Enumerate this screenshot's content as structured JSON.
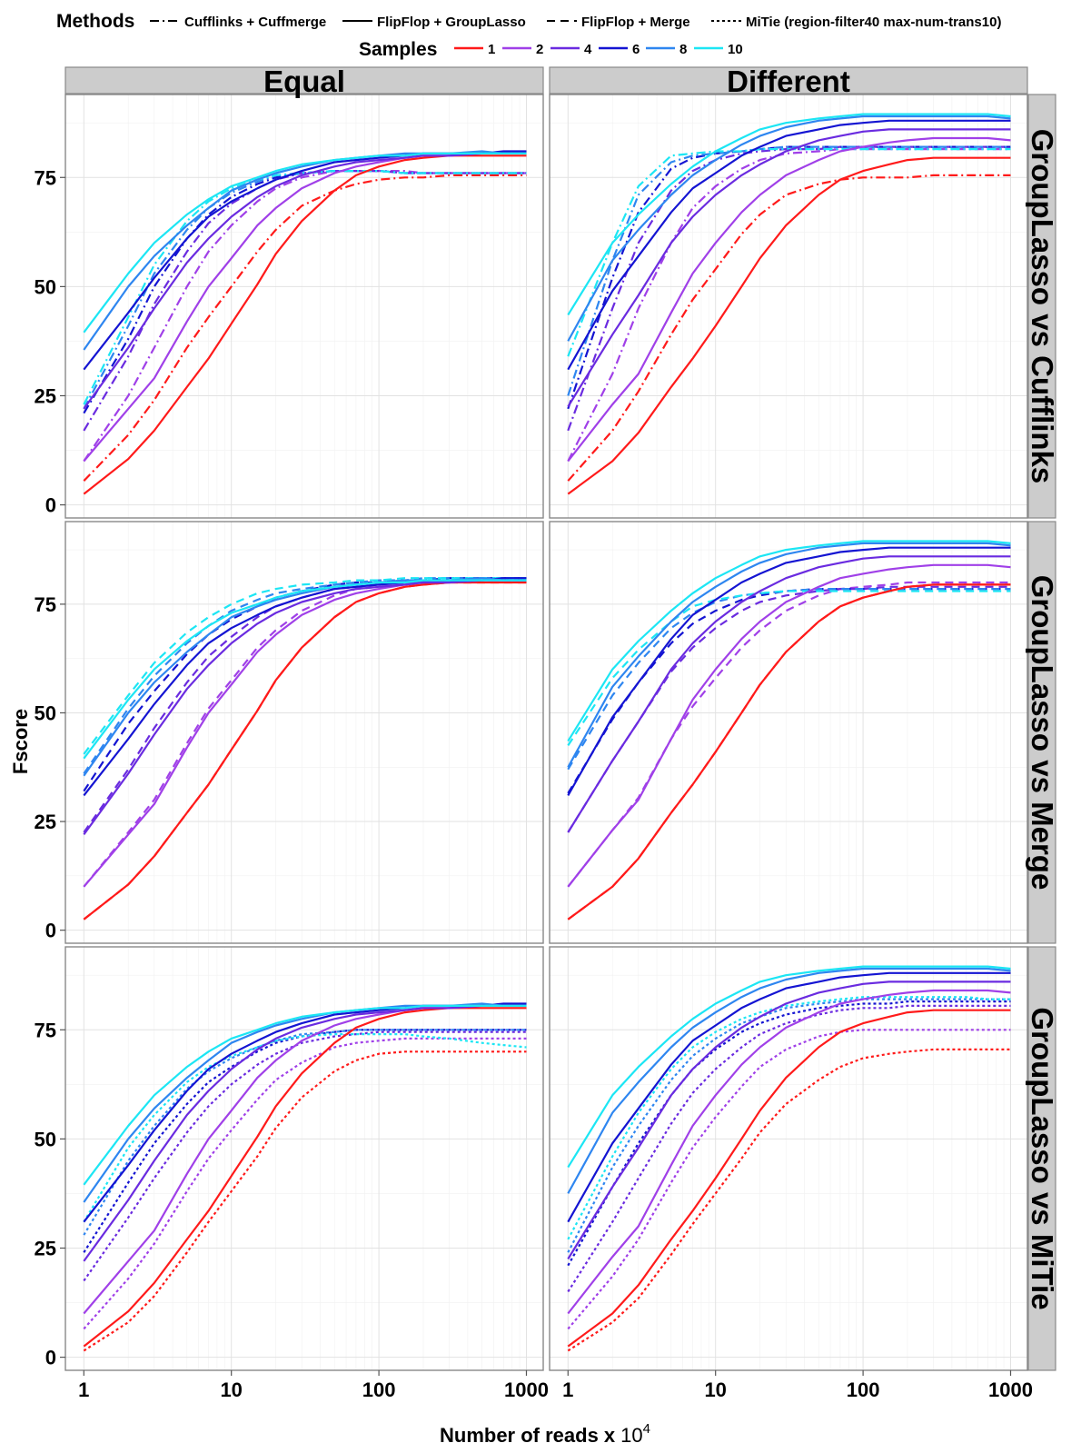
{
  "chart_data": {
    "type": "line",
    "xlabel": "Number of reads x",
    "xlabel_sup_base": "10",
    "xlabel_sup_exp": "4",
    "ylabel": "Fscore",
    "x_scale": "log10",
    "xlim": [
      0.75,
      1300
    ],
    "ylim": [
      -3,
      94
    ],
    "x_ticks": [
      1,
      10,
      100,
      1000
    ],
    "x_tick_labels": [
      "1",
      "10",
      "100",
      "1000"
    ],
    "y_ticks": [
      0,
      25,
      50,
      75
    ],
    "y_tick_labels": [
      "0",
      "25",
      "50",
      "75"
    ],
    "grid": true,
    "legend_placement": "top",
    "legend": {
      "methods_title": "Methods",
      "methods": [
        {
          "key": "cuff",
          "label": "Cufflinks + Cuffmerge",
          "dash": "dashdot"
        },
        {
          "key": "gl",
          "label": "FlipFlop + GroupLasso",
          "dash": "solid"
        },
        {
          "key": "merge",
          "label": "FlipFlop + Merge",
          "dash": "dashed"
        },
        {
          "key": "mitie",
          "label": "MiTie (region-filter40 max-num-trans10)",
          "dash": "dotted"
        }
      ],
      "samples_title": "Samples",
      "samples": [
        {
          "label": "1",
          "color": "#FF1A1A"
        },
        {
          "label": "2",
          "color": "#A040E8"
        },
        {
          "label": "4",
          "color": "#6A2BE0"
        },
        {
          "label": "6",
          "color": "#1414D2"
        },
        {
          "label": "8",
          "color": "#2E86F0"
        },
        {
          "label": "10",
          "color": "#1CE6F4"
        }
      ]
    },
    "col_strips": [
      "Equal",
      "Different"
    ],
    "row_strips": [
      "GroupLasso vs Cufflinks",
      "GroupLasso vs Merge",
      "GroupLasso vs MiTie"
    ],
    "x": [
      1,
      2,
      3,
      5,
      7,
      10,
      15,
      20,
      30,
      50,
      70,
      100,
      150,
      200,
      300,
      500,
      700,
      1000
    ],
    "grouplasso": {
      "equal": {
        "1": [
          2.5,
          10.5,
          17,
          27,
          33.5,
          41.5,
          50.5,
          57.5,
          65,
          72,
          75.5,
          77.5,
          79,
          79.5,
          80,
          80,
          80,
          80
        ],
        "2": [
          10,
          22,
          29,
          42,
          50,
          56.5,
          64,
          68,
          72.5,
          76,
          77.5,
          78.5,
          79.5,
          80,
          80,
          80.5,
          80.5,
          80.5
        ],
        "4": [
          22,
          36,
          45,
          55.5,
          61,
          66,
          70.5,
          73,
          75.5,
          77.5,
          78.5,
          79,
          79.5,
          80,
          80,
          80.5,
          80.5,
          80.5
        ],
        "6": [
          31,
          44,
          52,
          61,
          66,
          69.5,
          72.5,
          74.5,
          76.5,
          78.5,
          79,
          79.5,
          80,
          80.5,
          80.5,
          80.5,
          81,
          81
        ],
        "8": [
          35.5,
          50,
          57,
          64,
          68,
          72,
          74.5,
          76,
          77.5,
          79,
          79.5,
          80,
          80.5,
          80.5,
          80.5,
          81,
          80.5,
          80.5
        ],
        "10": [
          39.5,
          53,
          60,
          66.5,
          70,
          73,
          75,
          76.5,
          78,
          79,
          79.5,
          80,
          80,
          80.5,
          80.5,
          80.5,
          80.5,
          80.5
        ]
      },
      "different": {
        "1": [
          2.5,
          10,
          16.5,
          27,
          33.5,
          41,
          50,
          56.5,
          64,
          71,
          74.5,
          76.5,
          78,
          79,
          79.5,
          79.5,
          79.5,
          79.5
        ],
        "2": [
          10,
          23,
          30,
          44,
          53,
          60,
          67,
          71,
          75.5,
          79,
          81,
          82,
          83,
          83.5,
          84,
          84,
          84,
          83.5
        ],
        "4": [
          22.5,
          39,
          48,
          60,
          66,
          71,
          75.5,
          78,
          81,
          83.5,
          84.5,
          85.5,
          86,
          86,
          86,
          86,
          86,
          86
        ],
        "6": [
          31,
          49,
          57,
          67,
          72.5,
          76,
          80,
          82,
          84.5,
          86,
          87,
          87.5,
          88,
          88,
          88,
          88,
          88,
          88
        ],
        "8": [
          37.5,
          56,
          63,
          71,
          75.5,
          79,
          82.5,
          84.5,
          86.5,
          88,
          88.5,
          89,
          89,
          89,
          89,
          89,
          89,
          88.5
        ],
        "10": [
          43.5,
          60,
          66.5,
          73.5,
          77.5,
          81,
          84,
          86,
          87.5,
          88.5,
          89,
          89.5,
          89.5,
          89.5,
          89.5,
          89.5,
          89.5,
          89
        ]
      }
    },
    "comparators": {
      "cufflinks": {
        "dash": "dashdot",
        "equal": {
          "1": [
            5.5,
            16,
            24,
            36,
            43,
            50,
            58,
            63,
            68.5,
            72,
            73.5,
            74.5,
            75,
            75,
            75.5,
            75.5,
            75.5,
            75.5
          ],
          "2": [
            10,
            25,
            36,
            50,
            58,
            64,
            69.5,
            72.5,
            75,
            76.5,
            76.5,
            76.5,
            76.5,
            76,
            76,
            76,
            76,
            76
          ],
          "4": [
            17,
            34,
            46,
            58,
            64.5,
            69,
            72.5,
            74.5,
            76,
            76.5,
            76.5,
            76.5,
            76,
            76,
            76,
            76,
            76,
            76
          ],
          "6": [
            21,
            38,
            50,
            61,
            66.5,
            70.5,
            73.5,
            75,
            76,
            76.5,
            76.5,
            76.5,
            76,
            76,
            76,
            76,
            76,
            76
          ],
          "8": [
            22,
            41,
            53,
            63,
            68,
            71.5,
            74,
            75.5,
            76,
            76.5,
            76.5,
            76.5,
            76,
            76,
            76,
            76,
            76,
            76
          ],
          "10": [
            23,
            43,
            55,
            65,
            69.5,
            72.5,
            74.5,
            75.5,
            76,
            76.5,
            76.5,
            76.5,
            76,
            76,
            76,
            76,
            76,
            76
          ]
        },
        "different": {
          "1": [
            5.5,
            17,
            26,
            39,
            47,
            54,
            62,
            66.5,
            71,
            73.5,
            74.5,
            75,
            75,
            75,
            75.5,
            75.5,
            75.5,
            75.5
          ],
          "2": [
            10,
            30,
            45,
            60,
            68,
            73,
            77,
            79,
            80.5,
            81,
            81.5,
            81.5,
            81.5,
            81.5,
            81.5,
            81.5,
            81.5,
            81.5
          ],
          "4": [
            17,
            45,
            60,
            72,
            76.5,
            79,
            80.5,
            81,
            81.5,
            81.5,
            82,
            82,
            82,
            82,
            82,
            82,
            82,
            82
          ],
          "6": [
            22,
            52,
            67,
            77,
            79.5,
            80.5,
            81,
            81.5,
            82,
            82,
            82,
            82,
            82,
            82,
            82,
            82,
            82,
            82
          ],
          "8": [
            25,
            56,
            71,
            78.5,
            80,
            80.5,
            81,
            81.5,
            82,
            82,
            82,
            82,
            82,
            82,
            82,
            82,
            82,
            82
          ],
          "10": [
            34,
            60,
            73,
            80,
            80.5,
            81,
            81,
            81.5,
            81.5,
            81.5,
            81.5,
            81.5,
            81.5,
            81.5,
            81.5,
            81.5,
            81.5,
            81.5
          ]
        }
      },
      "merge": {
        "dash": "dashed",
        "equal": {
          "1": [
            2.5,
            10.5,
            17,
            27,
            33.5,
            41.5,
            50.5,
            57.5,
            65,
            72,
            75.5,
            77.5,
            79,
            79.5,
            80,
            80,
            80,
            80
          ],
          "2": [
            10,
            22.5,
            30,
            43,
            51,
            57.5,
            65,
            69,
            73.5,
            77,
            78.5,
            79,
            79.5,
            80,
            80,
            80.5,
            80.5,
            80.5
          ],
          "4": [
            22.5,
            37,
            46.5,
            57,
            63,
            67.5,
            72,
            74.5,
            76.5,
            78.5,
            79,
            79.5,
            80,
            80.5,
            80.5,
            80.5,
            81,
            81
          ],
          "6": [
            32,
            47.5,
            55,
            63.5,
            68,
            71.5,
            74.5,
            76.5,
            78,
            79.5,
            80,
            80,
            80.5,
            80.5,
            81,
            81,
            81,
            81
          ],
          "8": [
            36,
            51,
            58.5,
            66,
            70,
            73.5,
            76,
            77.5,
            78.5,
            79.5,
            80,
            80.5,
            80.5,
            81,
            81,
            81,
            81,
            81
          ],
          "10": [
            40.5,
            54,
            61.5,
            68.5,
            72,
            75,
            77.5,
            78.5,
            79.5,
            80,
            80.5,
            80.5,
            81,
            81,
            81,
            81,
            81,
            81
          ]
        },
        "different": {
          "1": [
            2.5,
            10,
            16.5,
            27,
            33.5,
            41,
            50,
            56.5,
            64,
            71,
            74.5,
            76.5,
            78,
            79,
            79.5,
            79.5,
            79.5,
            79.5
          ],
          "2": [
            10,
            23,
            30.5,
            44,
            51.5,
            58,
            65,
            69,
            73.5,
            77,
            78.5,
            79,
            79.5,
            80,
            80,
            80,
            80,
            80
          ],
          "4": [
            22.5,
            39,
            48,
            59.5,
            65,
            69.5,
            73.5,
            75.5,
            77,
            78,
            78.5,
            78.5,
            79,
            79,
            79,
            79,
            79,
            79
          ],
          "6": [
            31.5,
            48.5,
            57,
            66,
            70.5,
            73.5,
            76,
            77,
            78,
            78.5,
            78.5,
            78.5,
            78.5,
            78.5,
            78.5,
            78.5,
            78.5,
            78.5
          ],
          "8": [
            37,
            54,
            61.5,
            69.5,
            73,
            75.5,
            77,
            77.5,
            78,
            78.5,
            78.5,
            78.5,
            78.5,
            78.5,
            78.5,
            78.5,
            78.5,
            78.5
          ],
          "10": [
            42.5,
            58,
            64.5,
            71,
            74.5,
            76,
            77,
            77.5,
            78,
            78,
            78,
            78,
            78,
            78,
            78,
            78,
            78,
            78
          ]
        }
      },
      "mitie": {
        "dash": "dotted",
        "equal": {
          "1": [
            1.5,
            8,
            14,
            24,
            31,
            38,
            46,
            52.5,
            59.5,
            65.5,
            68,
            69.5,
            70,
            70,
            70,
            70,
            70,
            70
          ],
          "2": [
            6.5,
            18,
            26,
            38,
            45.5,
            52,
            59,
            63.5,
            67.5,
            71,
            72,
            72.5,
            73,
            73,
            73,
            73,
            73,
            73
          ],
          "4": [
            17.5,
            32,
            41,
            51.5,
            57.5,
            62.5,
            67,
            69.5,
            72,
            73.5,
            74,
            74.5,
            74.5,
            74.5,
            74.5,
            74.5,
            74.5,
            74.5
          ],
          "6": [
            24,
            40,
            49,
            58,
            63,
            66.5,
            70,
            72,
            73.5,
            74.5,
            75,
            75,
            75,
            75,
            75,
            75,
            75,
            75
          ],
          "8": [
            28,
            45,
            53,
            61.5,
            65.5,
            68.5,
            71,
            72.5,
            74,
            74.5,
            75,
            75,
            75,
            75,
            75,
            75,
            75,
            75
          ],
          "10": [
            31,
            48,
            55.5,
            63,
            66.5,
            69,
            71,
            72.5,
            73.5,
            74,
            74,
            74,
            74,
            73.5,
            73,
            72,
            71.5,
            71
          ]
        },
        "different": {
          "1": [
            1.5,
            8,
            13.5,
            23.5,
            30.5,
            37.5,
            45.5,
            51.5,
            58,
            63.5,
            66.5,
            68.5,
            69.5,
            70,
            70.5,
            70.5,
            70.5,
            70.5
          ],
          "2": [
            6.5,
            18.5,
            27,
            40,
            48,
            55,
            62,
            66.5,
            70.5,
            73.5,
            74.5,
            75,
            75,
            75,
            75,
            75,
            75,
            75
          ],
          "4": [
            15,
            31,
            41,
            53.5,
            60.5,
            66,
            71,
            74,
            76.5,
            78.5,
            79.5,
            80,
            80,
            80.5,
            80.5,
            80.5,
            80.5,
            80.5
          ],
          "6": [
            21,
            39,
            49,
            60,
            66,
            70.5,
            74.5,
            76.5,
            78.5,
            80,
            80.5,
            81,
            81,
            81.5,
            81.5,
            81.5,
            81.5,
            81.5
          ],
          "8": [
            24,
            43.5,
            53,
            63.5,
            69,
            73,
            76.5,
            78,
            80,
            81,
            81.5,
            82,
            82,
            82,
            82,
            82,
            82,
            82
          ],
          "10": [
            27,
            46,
            56,
            66,
            71,
            74.5,
            77.5,
            79,
            80.5,
            81.5,
            82,
            82.5,
            82.5,
            82.5,
            82.5,
            82.5,
            82,
            82
          ]
        }
      }
    }
  }
}
